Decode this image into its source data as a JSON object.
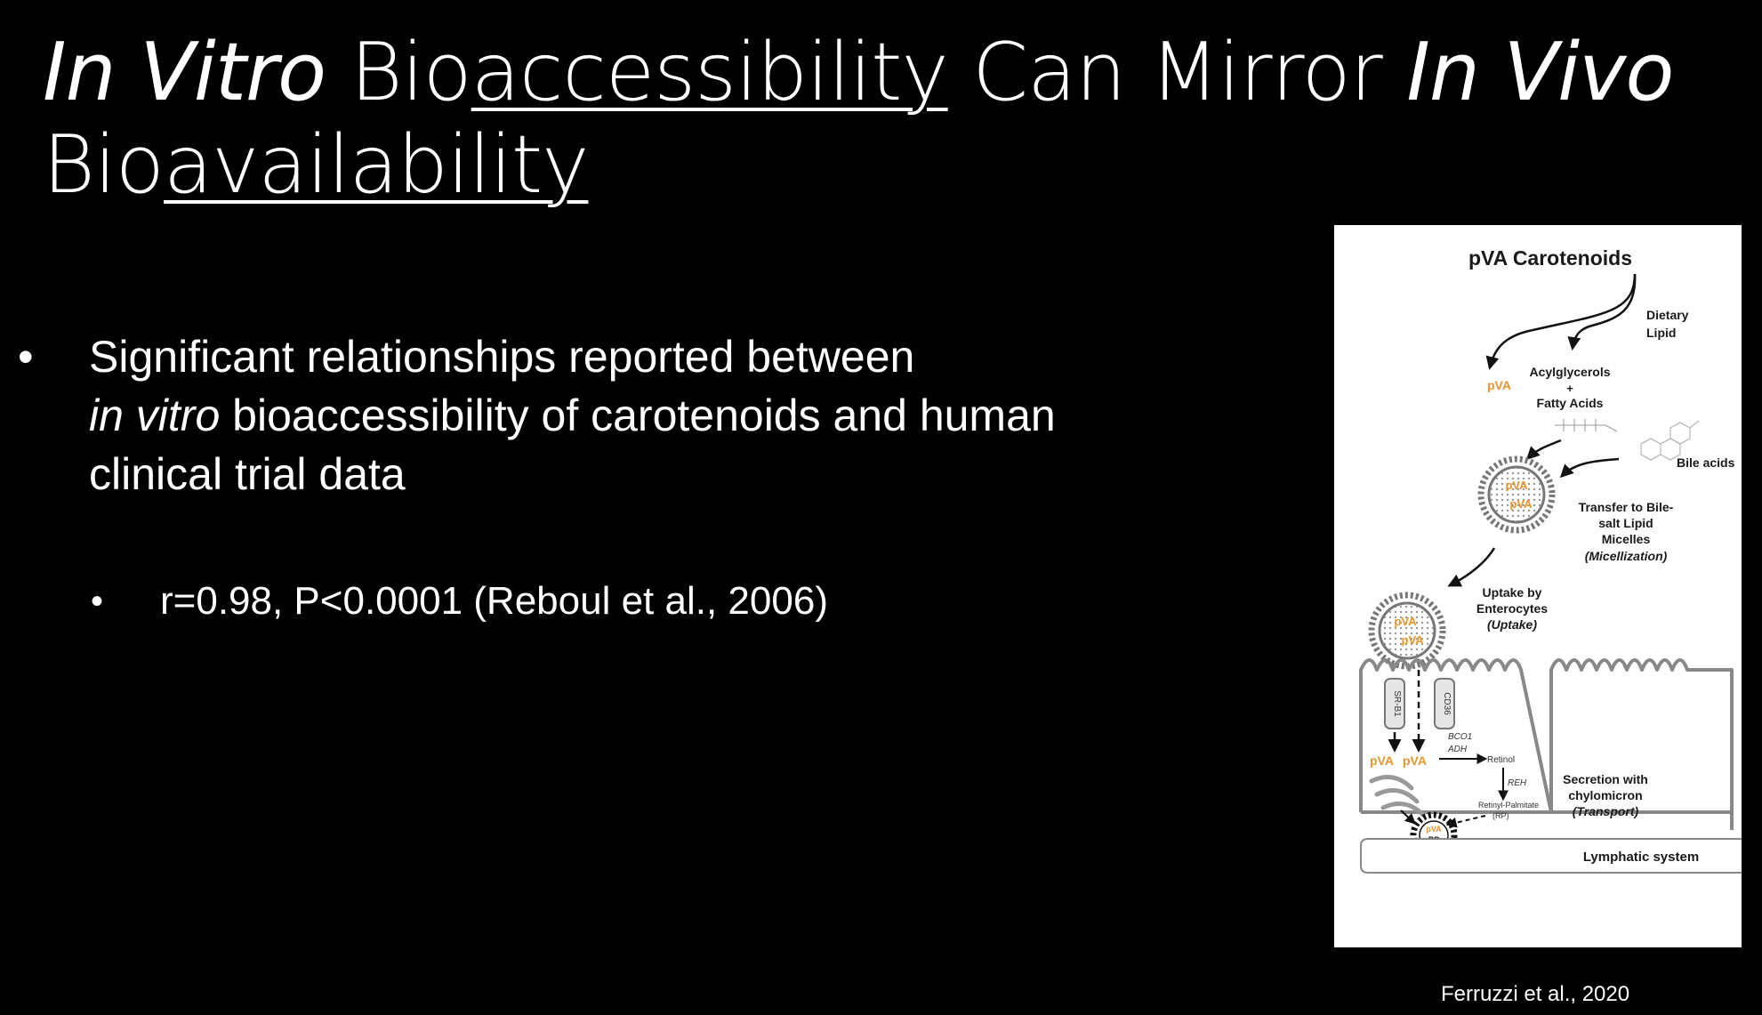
{
  "slide": {
    "title": {
      "part1_italic": "In Vitro",
      "part2": " Bio",
      "part3_underlined": "accessibility",
      "part4": " Can Mirror ",
      "part5_italic": "In Vivo",
      "part6": "Bio",
      "part7_underlined": "availability"
    },
    "bullet1": {
      "line1": "Significant relationships reported between",
      "italic": "in vitro",
      "rest": " bioaccessibility of carotenoids and human clinical trial data"
    },
    "bullet2": "r=0.98, P<0.0001 (Reboul et al., 2006)",
    "citation": "Ferruzzi et al., 2020"
  },
  "figure": {
    "title": "pVA Carotenoids",
    "dietary_lipid_1": "Dietary",
    "dietary_lipid_2": "Lipid",
    "acylglycerols": "Acylglycerols",
    "plus": "+",
    "fatty_acids": "Fatty Acids",
    "bile_acids": "Bile acids",
    "pva": "pVA",
    "transfer_1": "Transfer to Bile-",
    "transfer_2": "salt Lipid",
    "transfer_3": "Micelles",
    "micellization": "(Micellization)",
    "uptake_1": "Uptake by",
    "uptake_2": "Enterocytes",
    "uptake_3": "(Uptake)",
    "sr_b1": "SR-B1",
    "cd36": "CD36",
    "bco1": "BCO1",
    "adh": "ADH",
    "retinol": "Retinol",
    "reh": "REH",
    "retinyl_palmitate_1": "Retinyl-Palmitate",
    "retinyl_palmitate_2": "(RP)",
    "rp": "RP",
    "secretion_1": "Secretion with",
    "secretion_2": "chylomicron",
    "transport": "(Transport)",
    "lymphatic": "Lymphatic system",
    "colors": {
      "accent": "#e8962e",
      "line": "#888888",
      "text": "#1a1a1a"
    }
  }
}
